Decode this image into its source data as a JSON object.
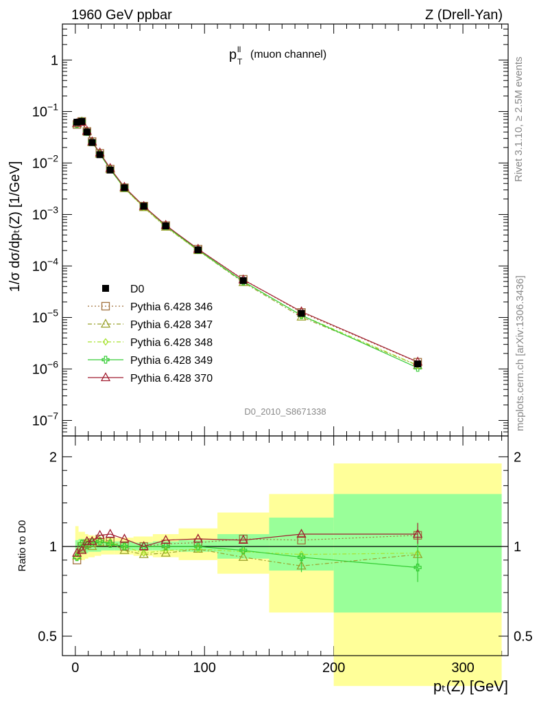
{
  "header": {
    "left": "1960 GeV ppbar",
    "right": "Z (Drell-Yan)"
  },
  "side_labels": {
    "rivet": "Rivet 3.1.10, ≥ 2.5M events",
    "mcplots": "mcplots.cern.ch [arXiv:1306.3436]"
  },
  "plot_title": {
    "main": "p",
    "sup": "ll",
    "sub": "T",
    "suffix": "(muon channel)"
  },
  "analysis_id": "D0_2010_S8671338",
  "colors": {
    "D0": "#000000",
    "346": "#a0703c",
    "347": "#99a12b",
    "348": "#a6e22e",
    "349": "#33cc33",
    "370": "#a01b2e",
    "band_yellow": "#ffff99",
    "band_green": "#99ff99"
  },
  "chart_data": [
    {
      "type": "line",
      "panel": "main",
      "title": "",
      "xlabel": "",
      "ylabel": "1/σ  dσ/dp_T(Z) [1/GeV]",
      "yscale": "log",
      "ylim": [
        5e-08,
        5
      ],
      "xlim": [
        -10,
        335
      ],
      "ytick_labels": [
        "10^-7",
        "10^-6",
        "10^-5",
        "10^-4",
        "10^-3",
        "10^-2",
        "10^-1",
        "1"
      ],
      "legend": {
        "position": "middle-left"
      },
      "x": [
        1.25,
        5,
        9,
        13,
        19,
        27,
        38,
        53,
        70,
        95,
        130,
        175,
        265
      ],
      "series": [
        {
          "name": "D0",
          "marker": "filled-square",
          "color": "#000000",
          "values": [
            0.062,
            0.064,
            0.04,
            0.025,
            0.0145,
            0.0073,
            0.0033,
            0.00145,
            0.0006,
            0.000205,
            5.2e-05,
            1.2e-05,
            1.25e-06
          ]
        },
        {
          "name": "Pythia 6.428 346",
          "marker": "open-square",
          "line": "dotted",
          "color": "#a0703c",
          "values": [
            0.056,
            0.064,
            0.041,
            0.026,
            0.0154,
            0.0076,
            0.0033,
            0.00145,
            0.00061,
            0.000212,
            5.5e-05,
            1.25e-05,
            1.35e-06
          ]
        },
        {
          "name": "Pythia 6.428 347",
          "marker": "open-triangle",
          "line": "dash-dot",
          "color": "#99a12b",
          "values": [
            0.058,
            0.063,
            0.041,
            0.025,
            0.0149,
            0.0075,
            0.0032,
            0.00137,
            0.00057,
            0.0002,
            4.8e-05,
            1.02e-05,
            1.17e-06
          ]
        },
        {
          "name": "Pythia 6.428 348",
          "marker": "open-diamond",
          "line": "dash-dot",
          "color": "#a6e22e",
          "values": [
            0.057,
            0.066,
            0.041,
            0.026,
            0.0152,
            0.0075,
            0.0032,
            0.00137,
            0.00058,
            0.0002,
            5e-05,
            1.1e-05,
            1.18e-06
          ]
        },
        {
          "name": "Pythia 6.428 349",
          "marker": "open-cross",
          "line": "solid",
          "color": "#33cc33",
          "values": [
            0.057,
            0.065,
            0.04,
            0.026,
            0.015,
            0.0075,
            0.0033,
            0.00145,
            0.0006,
            0.000205,
            5e-05,
            1.1e-05,
            1.05e-06
          ]
        },
        {
          "name": "Pythia 6.428 370",
          "marker": "open-triangle",
          "line": "solid",
          "color": "#a01b2e",
          "values": [
            0.059,
            0.062,
            0.042,
            0.026,
            0.0158,
            0.0079,
            0.0034,
            0.00145,
            0.00062,
            0.000213,
            5.4e-05,
            1.3e-05,
            1.37e-06
          ]
        }
      ]
    },
    {
      "type": "line",
      "panel": "ratio",
      "title": "",
      "xlabel": "p_T(Z) [GeV]",
      "ylabel": "Ratio to D0",
      "yscale": "log",
      "ylim": [
        0.43,
        2.35
      ],
      "xlim": [
        -10,
        335
      ],
      "yticks": [
        0.5,
        1,
        2
      ],
      "ytick_labels": [
        "0.5",
        "1",
        "2"
      ],
      "xticks": [
        0,
        100,
        200,
        300
      ],
      "xtick_labels": [
        "0",
        "100",
        "200",
        "300"
      ],
      "reference_line": 1,
      "bins": [
        [
          0,
          2.5
        ],
        [
          2.5,
          7.5
        ],
        [
          7.5,
          10
        ],
        [
          10,
          15
        ],
        [
          15,
          20
        ],
        [
          20,
          30
        ],
        [
          30,
          45
        ],
        [
          45,
          60
        ],
        [
          60,
          80
        ],
        [
          80,
          110
        ],
        [
          110,
          150
        ],
        [
          150,
          200
        ],
        [
          200,
          330
        ]
      ],
      "band_inner": [
        [
          0.95,
          1.05
        ],
        [
          0.95,
          1.06
        ],
        [
          0.95,
          1.06
        ],
        [
          0.96,
          1.05
        ],
        [
          0.96,
          1.04
        ],
        [
          0.97,
          1.04
        ],
        [
          0.97,
          1.04
        ],
        [
          0.97,
          1.03
        ],
        [
          0.97,
          1.04
        ],
        [
          0.96,
          1.05
        ],
        [
          0.91,
          1.1
        ],
        [
          0.83,
          1.25
        ],
        [
          0.6,
          1.5
        ]
      ],
      "band_outer": [
        [
          0.9,
          1.17
        ],
        [
          0.9,
          1.12
        ],
        [
          0.91,
          1.1
        ],
        [
          0.92,
          1.09
        ],
        [
          0.93,
          1.08
        ],
        [
          0.94,
          1.07
        ],
        [
          0.94,
          1.07
        ],
        [
          0.93,
          1.08
        ],
        [
          0.92,
          1.1
        ],
        [
          0.9,
          1.15
        ],
        [
          0.81,
          1.3
        ],
        [
          0.6,
          1.5
        ],
        [
          0.34,
          1.9
        ]
      ],
      "x": [
        1.25,
        5,
        9,
        13,
        19,
        27,
        38,
        53,
        70,
        95,
        130,
        175,
        265
      ],
      "series": [
        {
          "name": "Pythia 6.428 346",
          "color": "#a0703c",
          "values": [
            0.9,
            1.0,
            1.02,
            1.03,
            1.06,
            1.04,
            1.0,
            1.0,
            1.02,
            1.03,
            1.06,
            1.05,
            1.09
          ]
        },
        {
          "name": "Pythia 6.428 347",
          "color": "#99a12b",
          "values": [
            0.93,
            0.98,
            1.02,
            1.0,
            1.03,
            1.03,
            0.97,
            0.94,
            0.95,
            0.98,
            0.92,
            0.86,
            0.94
          ]
        },
        {
          "name": "Pythia 6.428 348",
          "color": "#a6e22e",
          "values": [
            0.92,
            1.03,
            1.03,
            1.04,
            1.05,
            1.03,
            1.0,
            0.95,
            0.97,
            0.98,
            0.96,
            0.94,
            0.95
          ]
        },
        {
          "name": "Pythia 6.428 349",
          "color": "#33cc33",
          "values": [
            0.92,
            1.02,
            1.01,
            1.03,
            1.04,
            1.02,
            1.0,
            1.0,
            1.0,
            1.0,
            0.97,
            0.92,
            0.85
          ]
        },
        {
          "name": "Pythia 6.428 370",
          "color": "#a01b2e",
          "values": [
            0.95,
            0.97,
            1.04,
            1.04,
            1.09,
            1.1,
            1.06,
            1.0,
            1.05,
            1.06,
            1.05,
            1.1,
            1.1
          ]
        }
      ]
    }
  ]
}
